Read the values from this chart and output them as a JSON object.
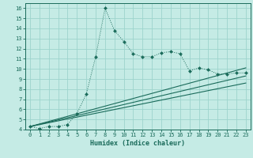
{
  "xlabel": "Humidex (Indice chaleur)",
  "bg_color": "#c5ebe5",
  "line_color": "#1a6b5a",
  "grid_color": "#9dd4cc",
  "xlim": [
    -0.5,
    23.5
  ],
  "ylim": [
    4,
    16.5
  ],
  "xticks": [
    0,
    1,
    2,
    3,
    4,
    5,
    6,
    7,
    8,
    9,
    10,
    11,
    12,
    13,
    14,
    15,
    16,
    17,
    18,
    19,
    20,
    21,
    22,
    23
  ],
  "yticks": [
    4,
    5,
    6,
    7,
    8,
    9,
    10,
    11,
    12,
    13,
    14,
    15,
    16
  ],
  "main_line_x": [
    0,
    1,
    2,
    3,
    4,
    5,
    6,
    7,
    8,
    9,
    10,
    11,
    12,
    13,
    14,
    15,
    16,
    17,
    18,
    19,
    20,
    21,
    22,
    23
  ],
  "main_line_y": [
    4.3,
    4.1,
    4.3,
    4.3,
    4.5,
    5.6,
    7.5,
    11.2,
    16.0,
    13.8,
    12.7,
    11.5,
    11.2,
    11.2,
    11.6,
    11.7,
    11.5,
    9.8,
    10.1,
    9.9,
    9.5,
    9.5,
    9.6,
    9.6
  ],
  "straight_lines": [
    {
      "x": [
        0,
        23
      ],
      "y": [
        4.3,
        10.1
      ]
    },
    {
      "x": [
        0,
        23
      ],
      "y": [
        4.3,
        9.3
      ]
    },
    {
      "x": [
        0,
        23
      ],
      "y": [
        4.3,
        8.6
      ]
    }
  ],
  "tick_fontsize": 5.0,
  "xlabel_fontsize": 6.0
}
